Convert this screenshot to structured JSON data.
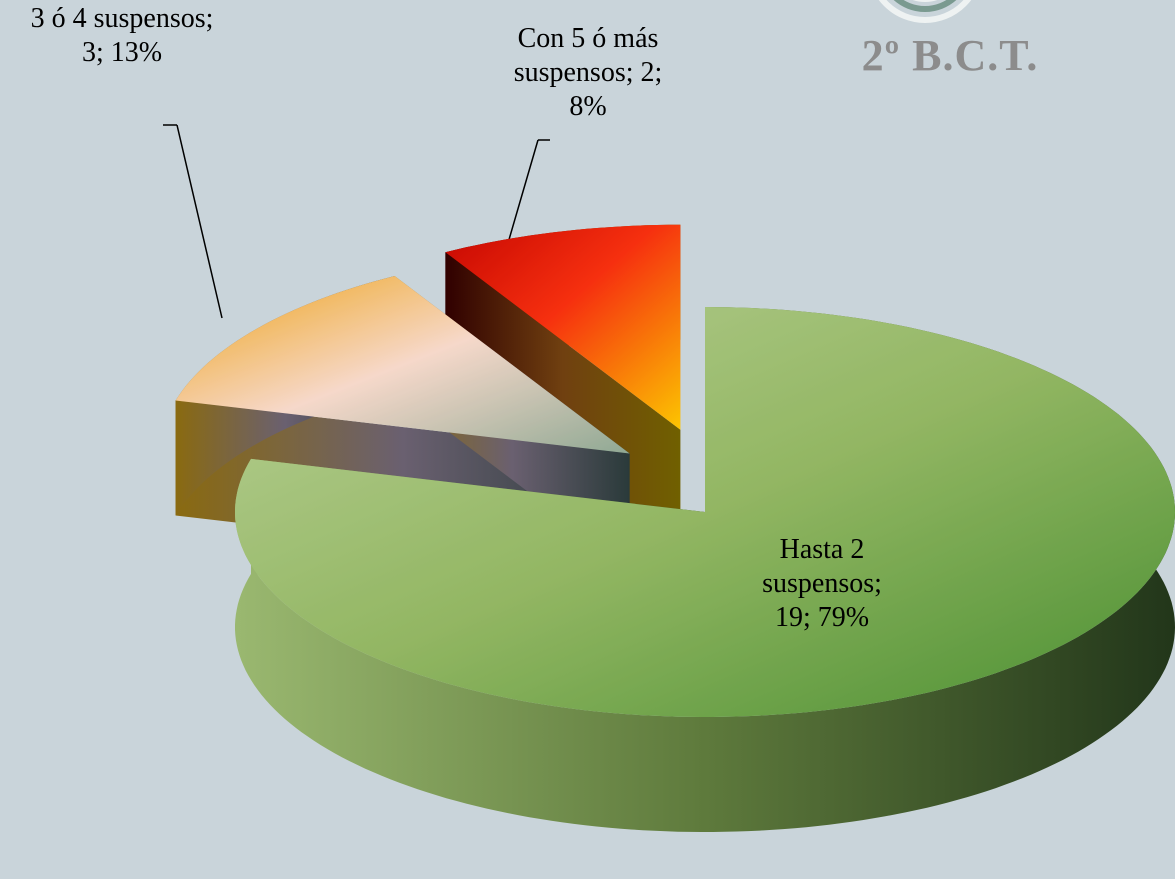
{
  "chart_data": {
    "type": "pie3d",
    "title": "2º B.C.T.",
    "labels": [
      "Hasta 2 suspensos; 19; 79%",
      "3 ó 4 suspensos; 3; 13%",
      "Con 5 ó más suspensos; 2; 8%"
    ],
    "values": [
      19,
      3,
      2
    ],
    "colors": [
      "#8fb060",
      "#e8b020",
      "#e83010"
    ]
  }
}
